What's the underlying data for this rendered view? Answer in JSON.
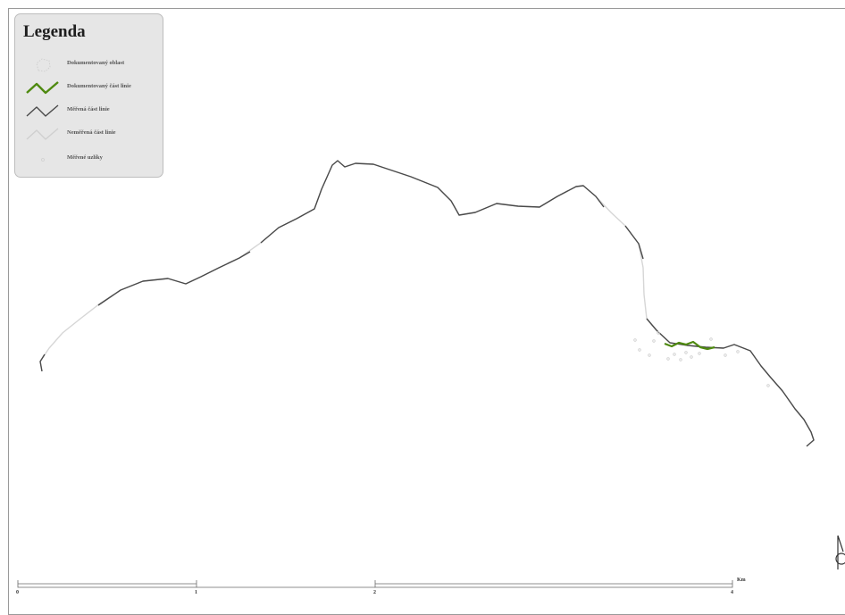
{
  "legend": {
    "title": "Legenda",
    "items": [
      {
        "label": "Dokumentovaný oblast",
        "symbol": "dotted-area-icon",
        "color": "#d8d8d8"
      },
      {
        "label": "Dokumentovaný část linie",
        "symbol": "green-line-icon",
        "color": "#4f8a10"
      },
      {
        "label": "Měřená část linie",
        "symbol": "dark-line-icon",
        "color": "#4a4a4a"
      },
      {
        "label": "Neměřená část linie",
        "symbol": "light-line-icon",
        "color": "#d4d4d4"
      },
      {
        "label": "Měřené uzlíky",
        "symbol": "point-icon",
        "color": "#dcdcdc"
      }
    ]
  },
  "scale_bar": {
    "labels": [
      "0",
      "1",
      "2",
      "4"
    ],
    "unit": "Km"
  },
  "colors": {
    "measured": "#4a4a4a",
    "documented": "#4f8a10",
    "unmeasured": "#d4d4d4",
    "legend_bg": "#e6e6e6",
    "frame": "#9a9a9a"
  }
}
